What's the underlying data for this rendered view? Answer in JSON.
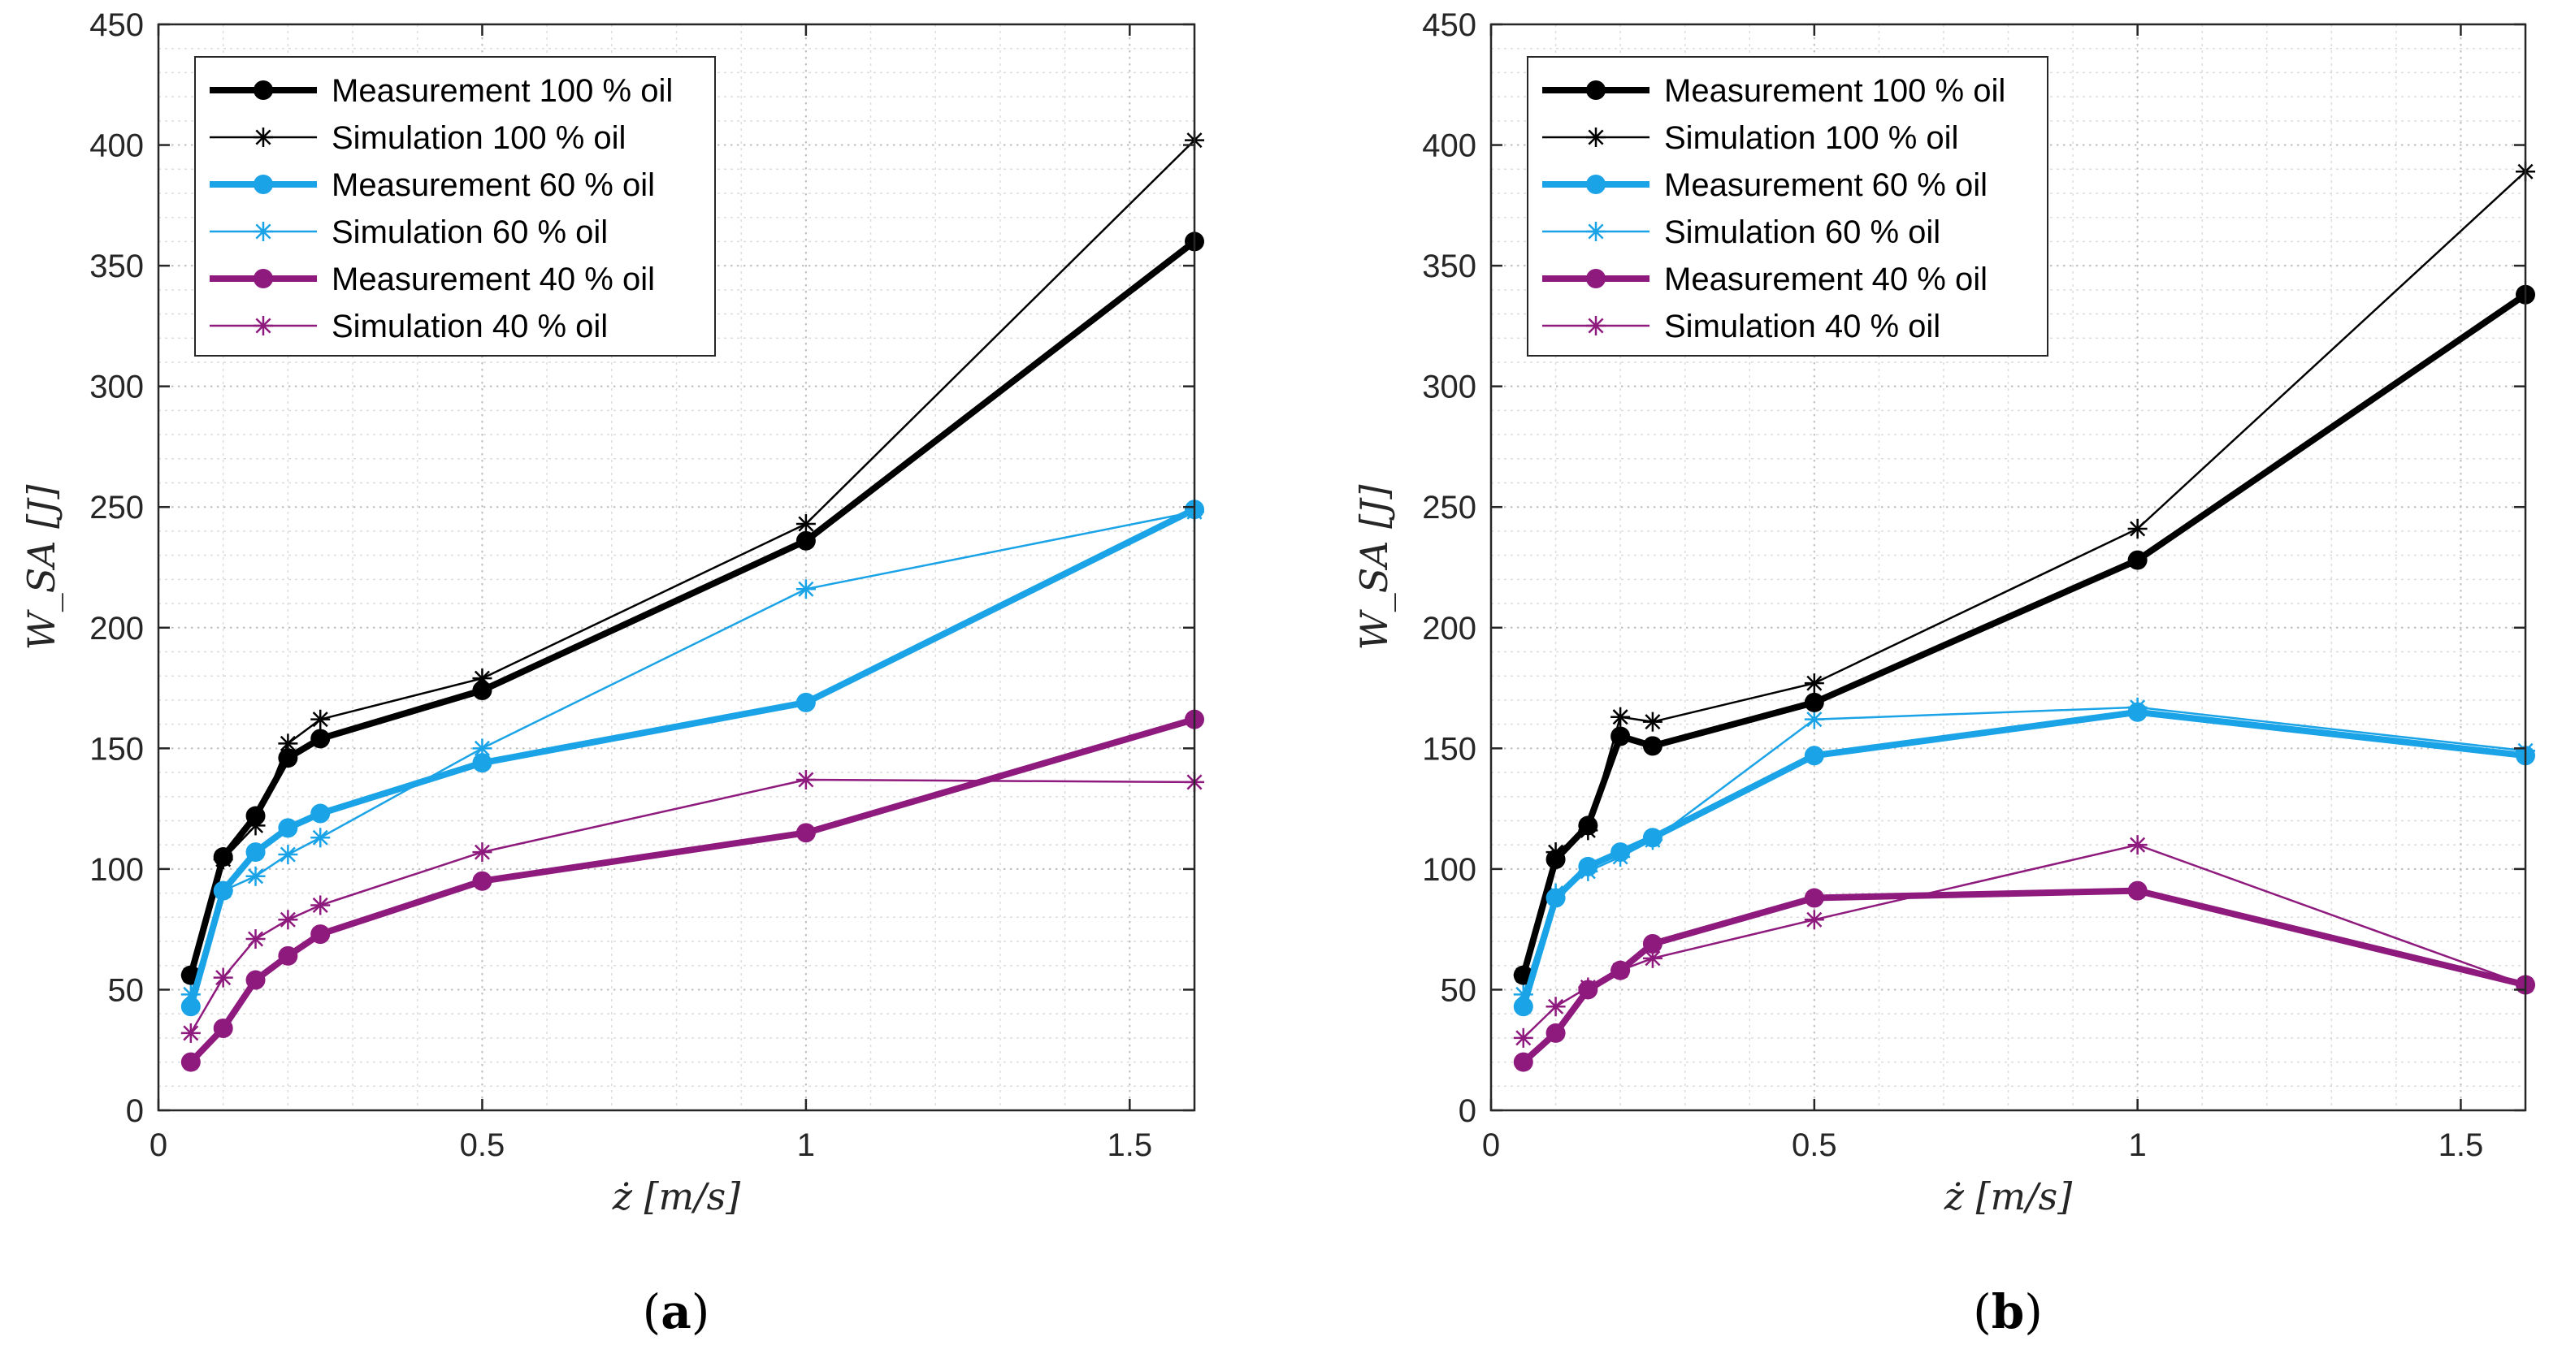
{
  "colors": {
    "black": "#000000",
    "blue": "#1aa3e6",
    "purple": "#8e1a7e"
  },
  "chart_data": [
    {
      "type": "line",
      "panel_label": "a",
      "xlabel": "ż [m/s]",
      "ylabel": "W_SA [J]",
      "xlim": [
        0,
        1.6
      ],
      "ylim": [
        0,
        450
      ],
      "xticks": [
        0,
        0.5,
        1,
        1.5
      ],
      "yticks": [
        0,
        50,
        100,
        150,
        200,
        250,
        300,
        350,
        400,
        450
      ],
      "grid": "on (major and minor)",
      "legend_position": "top-left",
      "x": [
        0.05,
        0.1,
        0.15,
        0.2,
        0.25,
        0.5,
        1,
        1.6
      ],
      "series": [
        {
          "name": "Measurement 100 % oil",
          "style": "measurement",
          "color": "black",
          "values": [
            56,
            105,
            122,
            146,
            154,
            174,
            236,
            360
          ]
        },
        {
          "name": "Simulation 100 % oil",
          "style": "simulation",
          "color": "black",
          "values": [
            56,
            104,
            118,
            152,
            162,
            179,
            243,
            402
          ]
        },
        {
          "name": "Measurement 60 % oil",
          "style": "measurement",
          "color": "blue",
          "values": [
            43,
            91,
            107,
            117,
            123,
            144,
            169,
            249
          ]
        },
        {
          "name": "Simulation 60 % oil",
          "style": "simulation",
          "color": "blue",
          "values": [
            48,
            91,
            97,
            106,
            113,
            150,
            216,
            248
          ]
        },
        {
          "name": "Measurement 40 % oil",
          "style": "measurement",
          "color": "purple",
          "values": [
            20,
            34,
            54,
            64,
            73,
            95,
            115,
            162
          ]
        },
        {
          "name": "Simulation 40 % oil",
          "style": "simulation",
          "color": "purple",
          "values": [
            32,
            55,
            71,
            79,
            85,
            107,
            137,
            136
          ]
        }
      ]
    },
    {
      "type": "line",
      "panel_label": "b",
      "xlabel": "ż [m/s]",
      "ylabel": "W_SA [J]",
      "xlim": [
        0,
        1.6
      ],
      "ylim": [
        0,
        450
      ],
      "xticks": [
        0,
        0.5,
        1,
        1.5
      ],
      "yticks": [
        0,
        50,
        100,
        150,
        200,
        250,
        300,
        350,
        400,
        450
      ],
      "grid": "on (major and minor)",
      "legend_position": "top-left",
      "x": [
        0.05,
        0.1,
        0.15,
        0.2,
        0.25,
        0.5,
        1,
        1.6
      ],
      "series": [
        {
          "name": "Measurement 100 % oil",
          "style": "measurement",
          "color": "black",
          "values": [
            56,
            104,
            118,
            155,
            151,
            169,
            228,
            338
          ]
        },
        {
          "name": "Simulation 100 % oil",
          "style": "simulation",
          "color": "black",
          "values": [
            56,
            107,
            116,
            163,
            161,
            177,
            241,
            389
          ]
        },
        {
          "name": "Measurement 60 % oil",
          "style": "measurement",
          "color": "blue",
          "values": [
            43,
            88,
            101,
            107,
            113,
            147,
            165,
            147
          ]
        },
        {
          "name": "Simulation 60 % oil",
          "style": "simulation",
          "color": "blue",
          "values": [
            48,
            90,
            99,
            105,
            112,
            162,
            167,
            149
          ]
        },
        {
          "name": "Measurement 40 % oil",
          "style": "measurement",
          "color": "purple",
          "values": [
            20,
            32,
            50,
            58,
            69,
            88,
            91,
            52
          ]
        },
        {
          "name": "Simulation 40 % oil",
          "style": "simulation",
          "color": "purple",
          "values": [
            30,
            43,
            51,
            58,
            63,
            79,
            110,
            52
          ]
        }
      ]
    }
  ]
}
